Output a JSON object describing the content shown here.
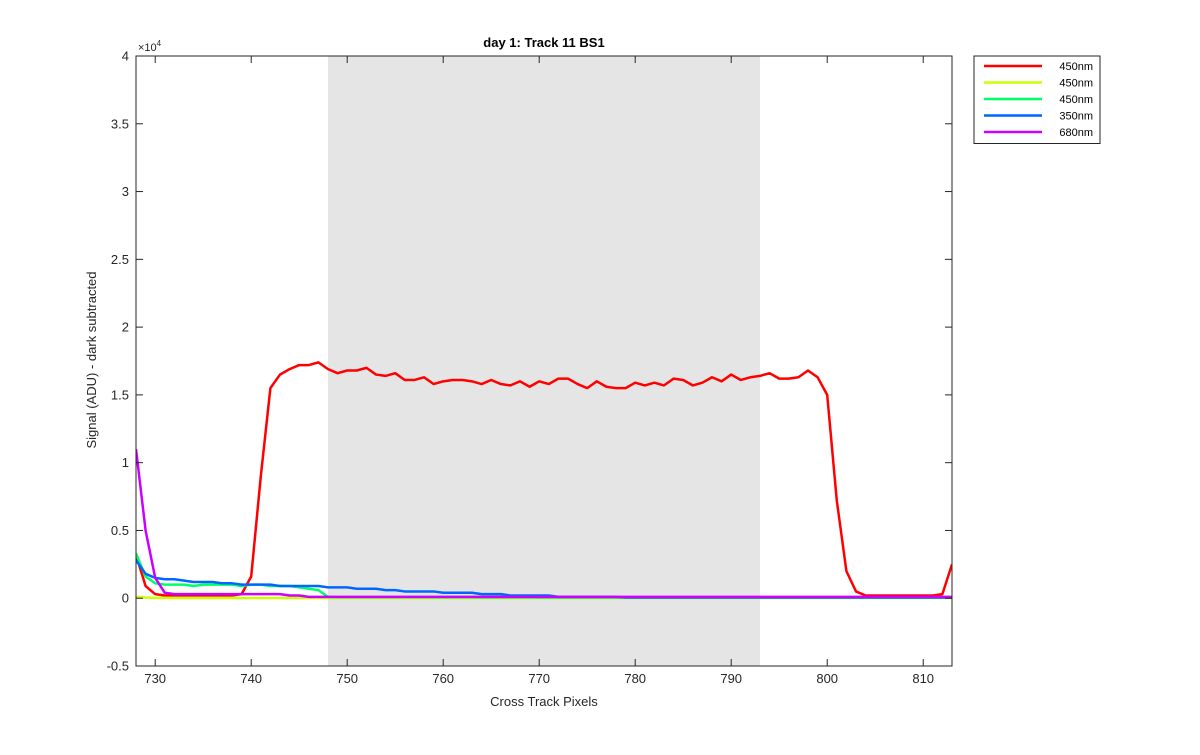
{
  "chart_data": {
    "type": "line",
    "title": "day 1: Track 11  BS1",
    "xlabel": "Cross Track Pixels",
    "ylabel": "Signal (ADU) - dark subtracted",
    "y_exponent_label": "×10",
    "y_exponent_power": "4",
    "xlim": [
      728,
      813
    ],
    "ylim": [
      -5000,
      40000
    ],
    "x_ticks": [
      730,
      740,
      750,
      760,
      770,
      780,
      790,
      800,
      810
    ],
    "x_tick_labels": [
      "730",
      "740",
      "750",
      "760",
      "770",
      "780",
      "790",
      "800",
      "810"
    ],
    "y_ticks": [
      -5000,
      0,
      5000,
      10000,
      15000,
      20000,
      25000,
      30000,
      35000,
      40000
    ],
    "y_tick_labels": [
      "-0.5",
      "0",
      "0.5",
      "1",
      "1.5",
      "2",
      "2.5",
      "3",
      "3.5",
      "4"
    ],
    "shaded_region": {
      "x": [
        748,
        793
      ],
      "color": "#e5e5e5"
    },
    "grid": false,
    "legend_position": "outside-top-right",
    "x": [
      728,
      729,
      730,
      731,
      732,
      733,
      734,
      735,
      736,
      737,
      738,
      739,
      740,
      741,
      742,
      743,
      744,
      745,
      746,
      747,
      748,
      749,
      750,
      751,
      752,
      753,
      754,
      755,
      756,
      757,
      758,
      759,
      760,
      761,
      762,
      763,
      764,
      765,
      766,
      767,
      768,
      769,
      770,
      771,
      772,
      773,
      774,
      775,
      776,
      777,
      778,
      779,
      780,
      781,
      782,
      783,
      784,
      785,
      786,
      787,
      788,
      789,
      790,
      791,
      792,
      793,
      794,
      795,
      796,
      797,
      798,
      799,
      800,
      801,
      802,
      803,
      804,
      805,
      806,
      807,
      808,
      809,
      810,
      811,
      812,
      813
    ],
    "series": [
      {
        "name": "450nm",
        "color": "#ff0000",
        "values": [
          3200,
          900,
          300,
          200,
          200,
          200,
          200,
          200,
          200,
          200,
          200,
          300,
          1600,
          9000,
          15500,
          16500,
          16900,
          17200,
          17200,
          17400,
          16900,
          16600,
          16800,
          16800,
          17000,
          16500,
          16400,
          16600,
          16100,
          16100,
          16300,
          15800,
          16000,
          16100,
          16100,
          16000,
          15800,
          16100,
          15800,
          15700,
          16000,
          15600,
          16000,
          15800,
          16200,
          16200,
          15800,
          15500,
          16000,
          15600,
          15500,
          15500,
          15900,
          15700,
          15900,
          15700,
          16200,
          16100,
          15700,
          15900,
          16300,
          16000,
          16500,
          16100,
          16300,
          16400,
          16600,
          16200,
          16200,
          16300,
          16800,
          16300,
          15000,
          7200,
          2000,
          500,
          200,
          200,
          200,
          200,
          200,
          200,
          200,
          200,
          300,
          2500
        ]
      },
      {
        "name": "450nm",
        "color": "#ccff00",
        "values": [
          100,
          50,
          30,
          30,
          20,
          20,
          20,
          20,
          20,
          20,
          20,
          20,
          20,
          20,
          20,
          20,
          20,
          20,
          20,
          20,
          20,
          20,
          20,
          20,
          20,
          20,
          20,
          20,
          20,
          20,
          20,
          20,
          20,
          20,
          20,
          20,
          20,
          20,
          20,
          20,
          20,
          20,
          20,
          20,
          20,
          20,
          20,
          20,
          20,
          20,
          20,
          20,
          20,
          20,
          20,
          20,
          20,
          20,
          20,
          20,
          20,
          20,
          20,
          20,
          20,
          20,
          20,
          20,
          20,
          20,
          20,
          20,
          20,
          20,
          20,
          20,
          20,
          20,
          20,
          20,
          20,
          20,
          20,
          20,
          20,
          20
        ]
      },
      {
        "name": "450nm",
        "color": "#00ff66",
        "values": [
          3300,
          1600,
          1100,
          1000,
          1000,
          1000,
          900,
          1000,
          1000,
          1000,
          1000,
          900,
          1000,
          1000,
          900,
          900,
          900,
          800,
          700,
          600,
          100,
          80,
          80,
          80,
          80,
          80,
          80,
          80,
          80,
          80,
          80,
          70,
          70,
          70,
          70,
          70,
          60,
          60,
          60,
          60,
          60,
          60,
          50,
          50,
          50,
          50,
          50,
          50,
          50,
          50,
          50,
          50,
          50,
          50,
          50,
          50,
          50,
          50,
          50,
          50,
          50,
          50,
          50,
          50,
          50,
          50,
          50,
          50,
          50,
          50,
          50,
          50,
          50,
          50,
          50,
          50,
          50,
          50,
          50,
          50,
          50,
          50,
          50,
          50,
          50,
          50
        ]
      },
      {
        "name": "350nm",
        "color": "#0066ff",
        "values": [
          2800,
          1800,
          1500,
          1400,
          1400,
          1300,
          1200,
          1200,
          1200,
          1100,
          1100,
          1000,
          1000,
          1000,
          1000,
          900,
          900,
          900,
          900,
          900,
          800,
          800,
          800,
          700,
          700,
          700,
          600,
          600,
          500,
          500,
          500,
          500,
          400,
          400,
          400,
          400,
          300,
          300,
          300,
          200,
          200,
          200,
          200,
          200,
          100,
          100,
          100,
          100,
          100,
          100,
          100,
          50,
          50,
          50,
          50,
          50,
          50,
          50,
          50,
          50,
          50,
          50,
          50,
          50,
          50,
          50,
          50,
          50,
          50,
          50,
          50,
          50,
          50,
          50,
          50,
          50,
          50,
          50,
          50,
          50,
          50,
          50,
          50,
          50,
          50,
          50
        ]
      },
      {
        "name": "680nm",
        "color": "#cc00ff",
        "values": [
          11000,
          5000,
          1500,
          400,
          300,
          300,
          300,
          300,
          300,
          300,
          300,
          300,
          300,
          300,
          300,
          300,
          200,
          200,
          100,
          100,
          100,
          100,
          100,
          100,
          100,
          100,
          100,
          100,
          100,
          100,
          100,
          100,
          100,
          100,
          100,
          100,
          100,
          100,
          100,
          100,
          100,
          100,
          100,
          100,
          100,
          100,
          100,
          100,
          100,
          100,
          100,
          100,
          100,
          100,
          100,
          100,
          100,
          100,
          100,
          100,
          100,
          100,
          100,
          100,
          100,
          100,
          100,
          100,
          100,
          100,
          100,
          100,
          100,
          100,
          100,
          100,
          100,
          100,
          100,
          100,
          100,
          100,
          100,
          100,
          100,
          100
        ]
      }
    ]
  }
}
